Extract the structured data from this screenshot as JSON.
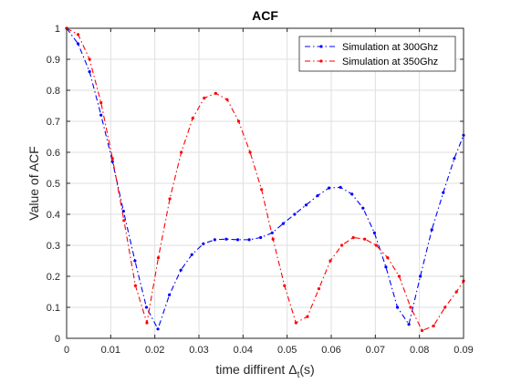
{
  "chart_data": {
    "type": "line",
    "title": "ACF",
    "xlabel_prefix": "time diffirent ",
    "xlabel_symbol": "Δ",
    "xlabel_subscript": "t",
    "xlabel_suffix": "(s)",
    "ylabel": "Value of ACF",
    "xlim": [
      0,
      0.09
    ],
    "ylim": [
      0,
      1
    ],
    "xticks": [
      0,
      0.01,
      0.02,
      0.03,
      0.04,
      0.05,
      0.06,
      0.07,
      0.08,
      0.09
    ],
    "xtick_labels": [
      "0",
      "0.01",
      "0.02",
      "0.03",
      "0.04",
      "0.05",
      "0.06",
      "0.07",
      "0.08",
      "0.09"
    ],
    "yticks": [
      0,
      0.1,
      0.2,
      0.3,
      0.4,
      0.5,
      0.6,
      0.7,
      0.8,
      0.9,
      1
    ],
    "ytick_labels": [
      "0",
      "0.1",
      "0.2",
      "0.3",
      "0.4",
      "0.5",
      "0.6",
      "0.7",
      "0.8",
      "0.9",
      "1"
    ],
    "grid": true,
    "legend_position": "top-right",
    "series": [
      {
        "name": "Simulation at 300Ghz",
        "color": "#0000ff",
        "x": [
          0,
          0.0026,
          0.0052,
          0.0078,
          0.0104,
          0.0129,
          0.0155,
          0.0181,
          0.0207,
          0.0233,
          0.0259,
          0.0284,
          0.031,
          0.0336,
          0.0362,
          0.0388,
          0.0414,
          0.044,
          0.0466,
          0.0491,
          0.0517,
          0.0543,
          0.0569,
          0.0595,
          0.0621,
          0.0647,
          0.0672,
          0.0698,
          0.0724,
          0.075,
          0.0776,
          0.0802,
          0.0828,
          0.0854,
          0.0879,
          0.09
        ],
        "y": [
          1.0,
          0.95,
          0.86,
          0.72,
          0.57,
          0.41,
          0.25,
          0.1,
          0.03,
          0.14,
          0.22,
          0.27,
          0.305,
          0.318,
          0.32,
          0.318,
          0.318,
          0.325,
          0.34,
          0.37,
          0.4,
          0.43,
          0.46,
          0.485,
          0.487,
          0.465,
          0.42,
          0.34,
          0.23,
          0.1,
          0.045,
          0.2,
          0.35,
          0.47,
          0.58,
          0.655
        ]
      },
      {
        "name": "Simulation at 350Ghz",
        "color": "#ff0000",
        "x": [
          0,
          0.0026,
          0.0052,
          0.0078,
          0.0104,
          0.013,
          0.0156,
          0.0182,
          0.0208,
          0.0234,
          0.026,
          0.0286,
          0.0312,
          0.0338,
          0.0364,
          0.039,
          0.0416,
          0.0442,
          0.0468,
          0.0494,
          0.052,
          0.0546,
          0.0572,
          0.0598,
          0.0624,
          0.065,
          0.0676,
          0.0702,
          0.0728,
          0.0754,
          0.078,
          0.0806,
          0.0832,
          0.0858,
          0.0884,
          0.09
        ],
        "y": [
          1.0,
          0.98,
          0.9,
          0.76,
          0.58,
          0.38,
          0.17,
          0.05,
          0.26,
          0.45,
          0.6,
          0.71,
          0.775,
          0.79,
          0.77,
          0.7,
          0.6,
          0.48,
          0.32,
          0.17,
          0.05,
          0.07,
          0.16,
          0.25,
          0.3,
          0.325,
          0.32,
          0.3,
          0.26,
          0.2,
          0.1,
          0.025,
          0.04,
          0.1,
          0.15,
          0.185
        ]
      }
    ]
  }
}
